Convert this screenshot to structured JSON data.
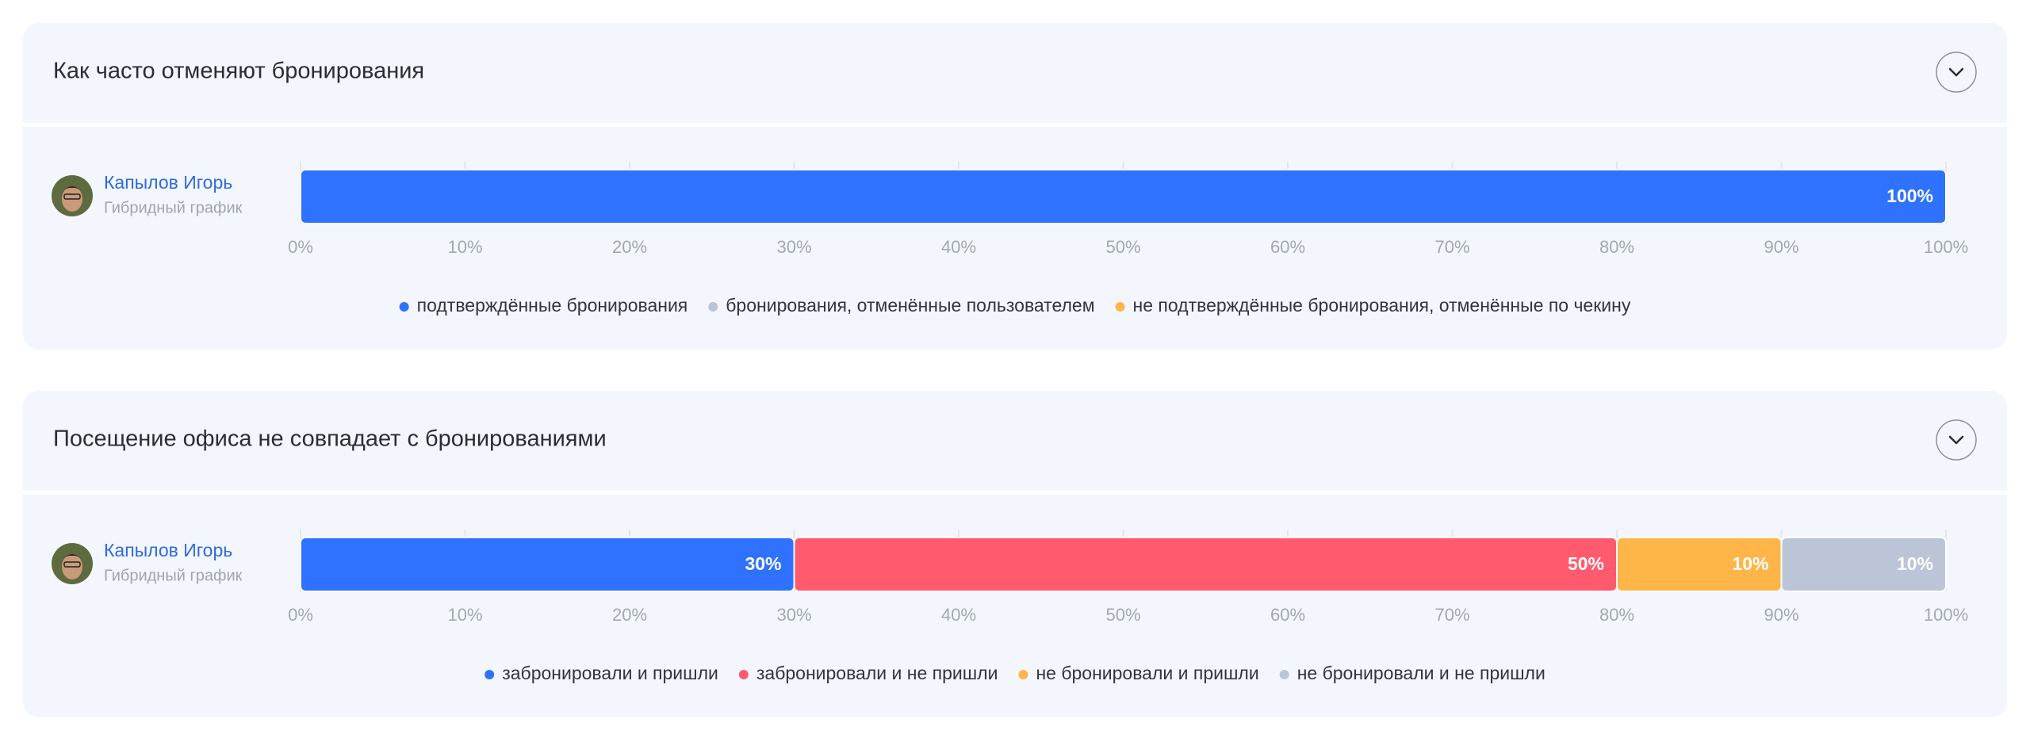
{
  "chart_data": [
    {
      "type": "stacked-bar",
      "title": "Как часто отменяют бронирования",
      "categories": [
        "Капылов Игорь"
      ],
      "category_notes": [
        "Гибридный график"
      ],
      "xlim": [
        0,
        100
      ],
      "xticks": [
        {
          "value": 0,
          "label": "0%"
        },
        {
          "value": 10,
          "label": "10%"
        },
        {
          "value": 20,
          "label": "20%"
        },
        {
          "value": 30,
          "label": "30%"
        },
        {
          "value": 40,
          "label": "40%"
        },
        {
          "value": 50,
          "label": "50%"
        },
        {
          "value": 60,
          "label": "60%"
        },
        {
          "value": 70,
          "label": "70%"
        },
        {
          "value": 80,
          "label": "80%"
        },
        {
          "value": 90,
          "label": "90%"
        },
        {
          "value": 100,
          "label": "100%"
        }
      ],
      "grid": true,
      "series": [
        {
          "name": "подтверждённые бронирования",
          "color": "#2f72ff",
          "values": [
            100
          ],
          "value_labels": [
            "100%"
          ]
        },
        {
          "name": "бронирования, отменённые пользователем",
          "color": "#bcc5d8",
          "values": [
            0
          ]
        },
        {
          "name": "не подтверждённые бронирования, отменённые по чекину",
          "color": "#ffb547",
          "values": [
            0
          ]
        }
      ]
    },
    {
      "type": "stacked-bar",
      "title": "Посещение офиса не совпадает с бронированиями",
      "categories": [
        "Капылов Игорь"
      ],
      "category_notes": [
        "Гибридный график"
      ],
      "xlim": [
        0,
        100
      ],
      "xticks": [
        {
          "value": 0,
          "label": "0%"
        },
        {
          "value": 10,
          "label": "10%"
        },
        {
          "value": 20,
          "label": "20%"
        },
        {
          "value": 30,
          "label": "30%"
        },
        {
          "value": 40,
          "label": "40%"
        },
        {
          "value": 50,
          "label": "50%"
        },
        {
          "value": 60,
          "label": "60%"
        },
        {
          "value": 70,
          "label": "70%"
        },
        {
          "value": 80,
          "label": "80%"
        },
        {
          "value": 90,
          "label": "90%"
        },
        {
          "value": 100,
          "label": "100%"
        }
      ],
      "grid": true,
      "series": [
        {
          "name": "забронировали и пришли",
          "color": "#2f72ff",
          "values": [
            30
          ],
          "value_labels": [
            "30%"
          ]
        },
        {
          "name": "забронировали и не пришли",
          "color": "#ff5a6e",
          "values": [
            50
          ],
          "value_labels": [
            "50%"
          ]
        },
        {
          "name": "не бронировали и пришли",
          "color": "#ffb547",
          "values": [
            10
          ],
          "value_labels": [
            "10%"
          ]
        },
        {
          "name": "не бронировали и не пришли",
          "color": "#bcc5d8",
          "values": [
            10
          ],
          "value_labels": [
            "10%"
          ]
        }
      ]
    }
  ]
}
